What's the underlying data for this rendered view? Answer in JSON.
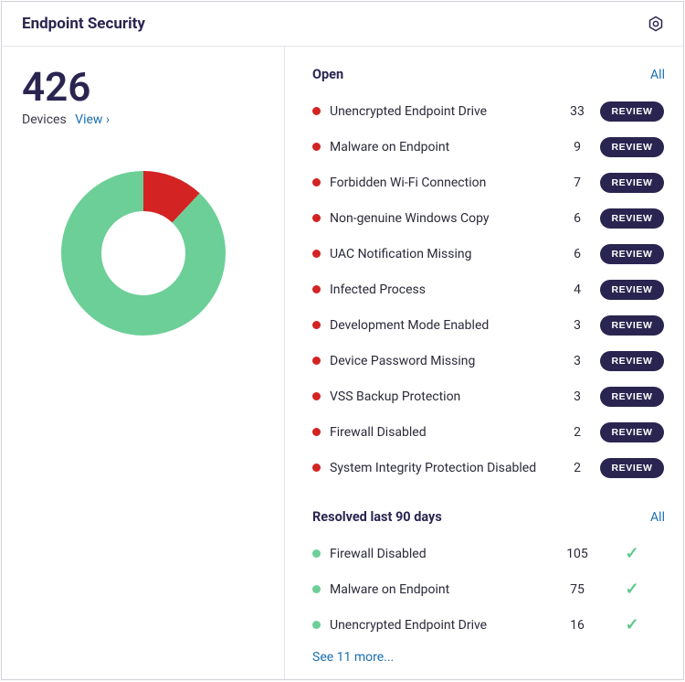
{
  "header": {
    "title": "Endpoint Security"
  },
  "summary": {
    "count": "426",
    "label": "Devices",
    "view_link": "View ›"
  },
  "donut": {
    "size": 180,
    "thickness": 44,
    "segments": [
      {
        "color": "#d32323",
        "fraction": 0.12
      },
      {
        "color": "#6ccf97",
        "fraction": 0.88
      }
    ],
    "start_angle": -90
  },
  "colors": {
    "open_dot": "#d32323",
    "resolved_dot": "#6ccf97",
    "pill_bg": "#2a2550",
    "link": "#1a6fb0",
    "title": "#2a2550"
  },
  "sections": {
    "open": {
      "title": "Open",
      "all_link": "All",
      "review_label": "REVIEW",
      "items": [
        {
          "label": "Unencrypted Endpoint Drive",
          "count": "33"
        },
        {
          "label": "Malware on Endpoint",
          "count": "9"
        },
        {
          "label": "Forbidden Wi-Fi Connection",
          "count": "7"
        },
        {
          "label": "Non-genuine Windows Copy",
          "count": "6"
        },
        {
          "label": "UAC Notification Missing",
          "count": "6"
        },
        {
          "label": "Infected Process",
          "count": "4"
        },
        {
          "label": "Development Mode Enabled",
          "count": "3"
        },
        {
          "label": "Device Password Missing",
          "count": "3"
        },
        {
          "label": "VSS Backup Protection",
          "count": "3"
        },
        {
          "label": "Firewall Disabled",
          "count": "2"
        },
        {
          "label": "System Integrity Protection Disabled",
          "count": "2"
        }
      ]
    },
    "resolved": {
      "title": "Resolved last 90 days",
      "all_link": "All",
      "items": [
        {
          "label": "Firewall Disabled",
          "count": "105"
        },
        {
          "label": "Malware on Endpoint",
          "count": "75"
        },
        {
          "label": "Unencrypted Endpoint Drive",
          "count": "16"
        }
      ],
      "see_more": "See 11 more..."
    }
  }
}
